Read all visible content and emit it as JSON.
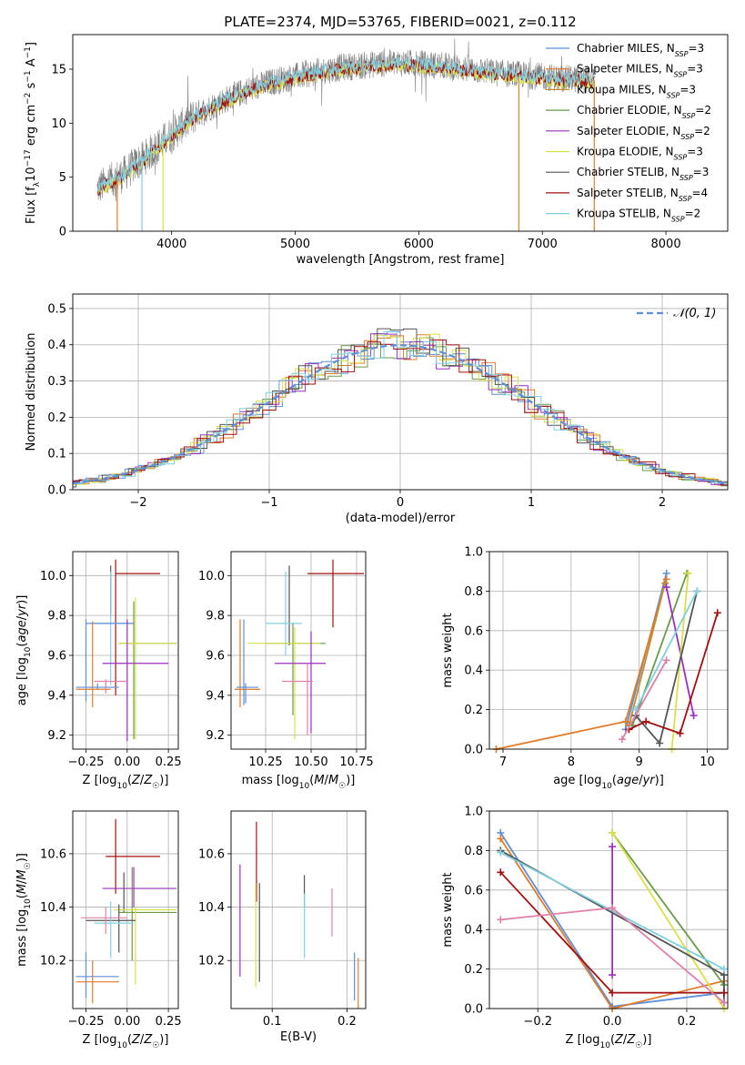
{
  "title": "PLATE=2374, MJD=53765, FIBERID=0021, z=0.112",
  "colors": {
    "chabrier_miles": "#5f8fd8",
    "salpeter_miles": "#e07b2a",
    "kroupa_miles": "#c98a2a",
    "chabrier_elodie": "#6a9a4a",
    "salpeter_elodie": "#9b30c0",
    "kroupa_elodie": "#d9e14a",
    "chabrier_stelib": "#555555",
    "salpeter_stelib": "#a01010",
    "kroupa_stelib": "#80d0e0",
    "pink": "#e080a8",
    "data_spectrum": "#808080",
    "gaussian": "#5f8fd8"
  },
  "chart_data": [
    {
      "type": "line",
      "panel": "spectrum",
      "xlabel": "wavelength [Angstrom, rest frame]",
      "ylabel": "Flux [f_λ10^-17 erg cm^-2 s^-1 A^-1]",
      "xlim": [
        3200,
        8500
      ],
      "ylim": [
        0,
        18.2
      ],
      "xticks": [
        "4000",
        "5000",
        "6000",
        "7000",
        "8000"
      ],
      "yticks": [
        "0",
        "5",
        "10",
        "15"
      ],
      "legend_position": "right",
      "legend": [
        {
          "label": "Chabrier MILES, N_SSP=3",
          "main": "Chabrier MILES, N",
          "sub": "SSP",
          "tail": "=3",
          "color": "#5f8fd8"
        },
        {
          "label": "Salpeter MILES, N_SSP=3",
          "main": "Salpeter MILES, N",
          "sub": "SSP",
          "tail": "=3",
          "color": "#e07b2a"
        },
        {
          "label": "Kroupa MILES, N_SSP=3",
          "main": "Kroupa MILES, N",
          "sub": "SSP",
          "tail": "=3",
          "color": "#c98a2a"
        },
        {
          "label": "Chabrier ELODIE, N_SSP=2",
          "main": "Chabrier ELODIE, N",
          "sub": "SSP",
          "tail": "=2",
          "color": "#6a9a4a"
        },
        {
          "label": "Salpeter ELODIE, N_SSP=2",
          "main": "Salpeter ELODIE, N",
          "sub": "SSP",
          "tail": "=2",
          "color": "#9b30c0"
        },
        {
          "label": "Kroupa ELODIE, N_SSP=3",
          "main": "Kroupa ELODIE, N",
          "sub": "SSP",
          "tail": "=3",
          "color": "#d9e14a"
        },
        {
          "label": "Chabrier STELIB, N_SSP=3",
          "main": "Chabrier STELIB, N",
          "sub": "SSP",
          "tail": "=3",
          "color": "#555555"
        },
        {
          "label": "Salpeter STELIB, N_SSP=4",
          "main": "Salpeter STELIB, N",
          "sub": "SSP",
          "tail": "=4",
          "color": "#a01010"
        },
        {
          "label": "Kroupa STELIB, N_SSP=2",
          "main": "Kroupa STELIB, N",
          "sub": "SSP",
          "tail": "=2",
          "color": "#80d0e0"
        }
      ],
      "continuum": {
        "x": [
          3400,
          3600,
          3800,
          4000,
          4200,
          4400,
          4600,
          4800,
          5000,
          5200,
          5400,
          5600,
          5800,
          6000,
          6200,
          6400,
          6600,
          6800,
          7000,
          7200,
          7400
        ],
        "y": [
          4.0,
          5.2,
          7.0,
          9.0,
          10.8,
          12.0,
          13.0,
          13.8,
          14.3,
          14.8,
          15.2,
          15.4,
          15.6,
          15.5,
          15.3,
          15.0,
          14.7,
          14.5,
          14.3,
          14.1,
          14.0
        ]
      },
      "spikes": [
        3560,
        3760,
        3930,
        6810,
        7420
      ]
    },
    {
      "type": "line",
      "panel": "residual-histogram",
      "xlabel": "(data-model)/error",
      "ylabel": "Normed distribution",
      "xlim": [
        -2.5,
        2.5
      ],
      "ylim": [
        0,
        0.54
      ],
      "xticks": [
        "−2",
        "−1",
        "0",
        "1",
        "2"
      ],
      "yticks": [
        "0.0",
        "0.1",
        "0.2",
        "0.3",
        "0.4",
        "0.5"
      ],
      "legend_position": "top-right",
      "legend": [
        {
          "label": "𝒩(0, 1)",
          "color": "#5f8fd8",
          "dashed": true
        }
      ]
    },
    {
      "type": "scatter",
      "panel": "age-vs-Z",
      "xlabel": "Z [log10(Z/Z☉)]",
      "ylabel": "age  [log10(age/yr)]",
      "xlim": [
        -0.33,
        0.31
      ],
      "ylim": [
        9.13,
        10.12
      ],
      "xticks": [
        "−0.25",
        "0.00",
        "0.25"
      ],
      "yticks": [
        "9.2",
        "9.4",
        "9.6",
        "9.8",
        "10.0"
      ]
    },
    {
      "type": "scatter",
      "panel": "age-vs-mass",
      "xlabel": "mass [log10(M/M☉)]",
      "xlim": [
        10.06,
        10.8
      ],
      "ylim": [
        9.13,
        10.12
      ],
      "xticks": [
        "10.25",
        "10.50",
        "10.75"
      ],
      "yticks": [
        "9.2",
        "9.4",
        "9.6",
        "9.8",
        "10.0"
      ]
    },
    {
      "type": "line",
      "panel": "mass-weight-vs-age",
      "xlabel": "age  [log10(age/yr)]",
      "ylabel": "mass weight",
      "xlim": [
        6.8,
        10.3
      ],
      "ylim": [
        0,
        1
      ],
      "xticks": [
        "7",
        "8",
        "9",
        "10"
      ],
      "yticks": [
        "0.0",
        "0.2",
        "0.4",
        "0.6",
        "0.8",
        "1.0"
      ],
      "series": [
        {
          "color": "#5f8fd8",
          "x": [
            8.8,
            9.4
          ],
          "y": [
            0.1,
            0.89
          ]
        },
        {
          "color": "#e07b2a",
          "x": [
            6.9,
            8.8,
            9.4
          ],
          "y": [
            0.0,
            0.14,
            0.86
          ]
        },
        {
          "color": "#c98a2a",
          "x": [
            8.85,
            9.38
          ],
          "y": [
            0.12,
            0.84
          ]
        },
        {
          "color": "#6a9a4a",
          "x": [
            8.9,
            9.7
          ],
          "y": [
            0.12,
            0.89
          ]
        },
        {
          "color": "#9b30c0",
          "x": [
            9.4,
            9.8
          ],
          "y": [
            0.82,
            0.17
          ]
        },
        {
          "color": "#d9e14a",
          "x": [
            9.48,
            9.72
          ],
          "y": [
            0.0,
            0.89
          ]
        },
        {
          "color": "#555555",
          "x": [
            8.95,
            9.3,
            9.85
          ],
          "y": [
            0.17,
            0.03,
            0.8
          ]
        },
        {
          "color": "#a01010",
          "x": [
            8.85,
            9.1,
            9.6,
            10.15
          ],
          "y": [
            0.1,
            0.14,
            0.08,
            0.69
          ]
        },
        {
          "color": "#80d0e0",
          "x": [
            8.95,
            9.85
          ],
          "y": [
            0.2,
            0.8
          ]
        },
        {
          "color": "#e080a8",
          "x": [
            8.75,
            9.4
          ],
          "y": [
            0.05,
            0.45
          ]
        }
      ]
    },
    {
      "type": "scatter",
      "panel": "mass-vs-Z",
      "xlabel": "Z [log10(Z/Z☉)]",
      "ylabel": "mass [log10(M/M☉)]",
      "xlim": [
        -0.33,
        0.31
      ],
      "ylim": [
        10.02,
        10.76
      ],
      "xticks": [
        "−0.25",
        "0.00",
        "0.25"
      ],
      "yticks": [
        "10.2",
        "10.4",
        "10.6"
      ]
    },
    {
      "type": "scatter",
      "panel": "mass-vs-EBV",
      "xlabel": "E(B-V)",
      "xlim": [
        0.045,
        0.225
      ],
      "ylim": [
        10.02,
        10.76
      ],
      "xticks": [
        "0.1",
        "0.2"
      ],
      "yticks": [
        "10.2",
        "10.4",
        "10.6"
      ],
      "errorbars": [
        {
          "color": "#9b30c0",
          "x": 0.057,
          "y0": 10.14,
          "y1": 10.56
        },
        {
          "color": "#a01010",
          "x": 0.079,
          "y0": 10.42,
          "y1": 10.72
        },
        {
          "color": "#d9e14a",
          "x": 0.078,
          "y0": 10.1,
          "y1": 10.49
        },
        {
          "color": "#555555",
          "x": 0.083,
          "y0": 10.12,
          "y1": 10.49
        },
        {
          "color": "#555555",
          "x": 0.143,
          "y0": 10.4,
          "y1": 10.52
        },
        {
          "color": "#80d0e0",
          "x": 0.143,
          "y0": 10.21,
          "y1": 10.45
        },
        {
          "color": "#e080a8",
          "x": 0.18,
          "y0": 10.29,
          "y1": 10.47
        },
        {
          "color": "#5f8fd8",
          "x": 0.21,
          "y0": 10.05,
          "y1": 10.23
        },
        {
          "color": "#e07b2a",
          "x": 0.215,
          "y0": 10.02,
          "y1": 10.21
        }
      ]
    },
    {
      "type": "line",
      "panel": "mass-weight-vs-Z",
      "xlabel": "Z [log10(Z/Z☉)]",
      "ylabel": "mass weight",
      "xlim": [
        -0.33,
        0.31
      ],
      "ylim": [
        0,
        1
      ],
      "xticks": [
        "−0.2",
        "0.0",
        "0.2"
      ],
      "yticks": [
        "0.0",
        "0.2",
        "0.4",
        "0.6",
        "0.8",
        "1.0"
      ],
      "series": [
        {
          "color": "#5f8fd8",
          "x": [
            -0.3,
            0.0,
            0.3
          ],
          "y": [
            0.89,
            0.01,
            0.08
          ]
        },
        {
          "color": "#e07b2a",
          "x": [
            -0.3,
            0.0,
            0.3
          ],
          "y": [
            0.86,
            0.0,
            0.14
          ]
        },
        {
          "color": "#6a9a4a",
          "x": [
            0.0,
            0.3
          ],
          "y": [
            0.89,
            0.12
          ]
        },
        {
          "color": "#9b30c0",
          "x": [
            0.0,
            0.0
          ],
          "y": [
            0.82,
            0.17
          ]
        },
        {
          "color": "#d9e14a",
          "x": [
            0.0,
            0.3
          ],
          "y": [
            0.89,
            0.0
          ]
        },
        {
          "color": "#555555",
          "x": [
            -0.3,
            0.3,
            0.3
          ],
          "y": [
            0.8,
            0.17,
            0.03
          ]
        },
        {
          "color": "#a01010",
          "x": [
            -0.3,
            0.0,
            0.3
          ],
          "y": [
            0.69,
            0.08,
            0.08
          ]
        },
        {
          "color": "#80d0e0",
          "x": [
            -0.3,
            0.3
          ],
          "y": [
            0.79,
            0.2
          ]
        },
        {
          "color": "#e080a8",
          "x": [
            -0.3,
            0.0,
            0.3
          ],
          "y": [
            0.45,
            0.51,
            0.03
          ]
        }
      ]
    }
  ]
}
